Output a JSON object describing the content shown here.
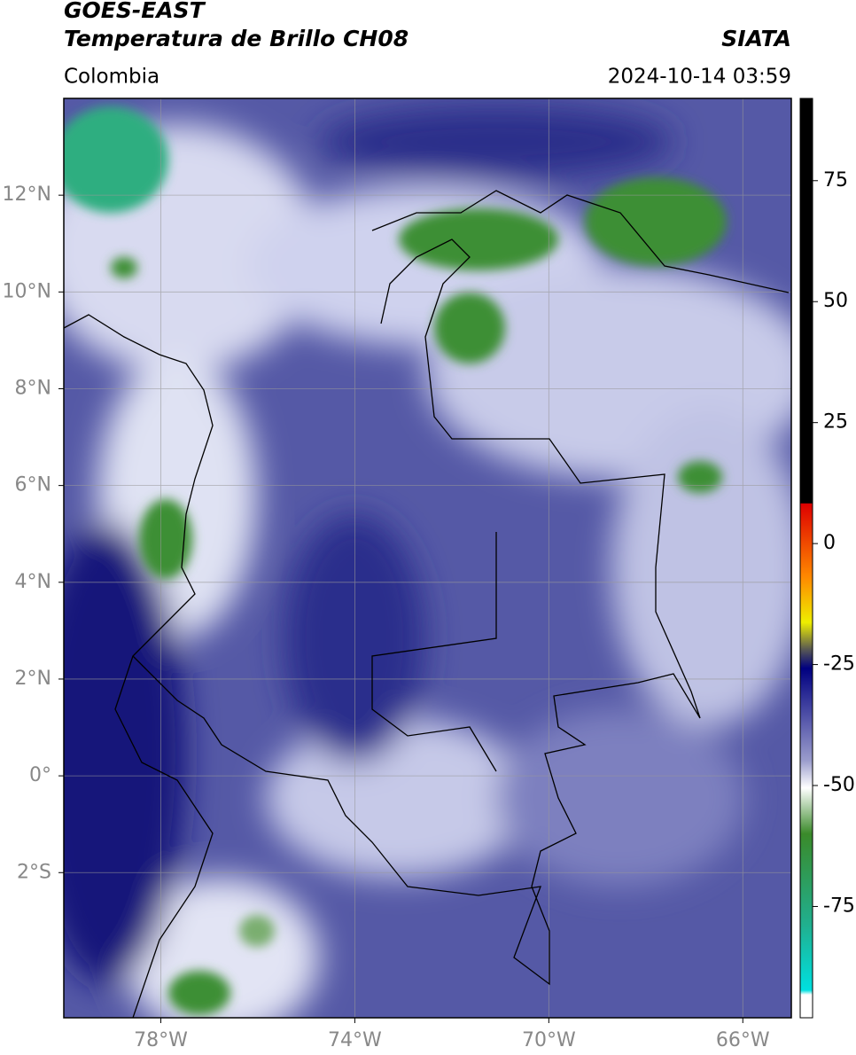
{
  "header": {
    "title": "GOES-EAST",
    "subtitle": "Temperatura de Brillo CH08",
    "source": "SIATA",
    "region": "Colombia",
    "datetime": "2024-10-14 03:59"
  },
  "map": {
    "xlim": [
      -80,
      -65
    ],
    "ylim": [
      -5,
      14
    ],
    "xticks": [
      {
        "value": -78,
        "label": "78°W"
      },
      {
        "value": -74,
        "label": "74°W"
      },
      {
        "value": -70,
        "label": "70°W"
      },
      {
        "value": -66,
        "label": "66°W"
      }
    ],
    "yticks": [
      {
        "value": 12,
        "label": "12°N"
      },
      {
        "value": 10,
        "label": "10°N"
      },
      {
        "value": 8,
        "label": "8°N"
      },
      {
        "value": 6,
        "label": "6°N"
      },
      {
        "value": 4,
        "label": "4°N"
      },
      {
        "value": 2,
        "label": "2°N"
      },
      {
        "value": 0,
        "label": "0°"
      },
      {
        "value": -2,
        "label": "2°S"
      }
    ],
    "grid": true
  },
  "colorbar": {
    "lim": [
      -98,
      92
    ],
    "ticks": [
      75,
      50,
      25,
      0,
      -25,
      -50,
      -75
    ]
  }
}
